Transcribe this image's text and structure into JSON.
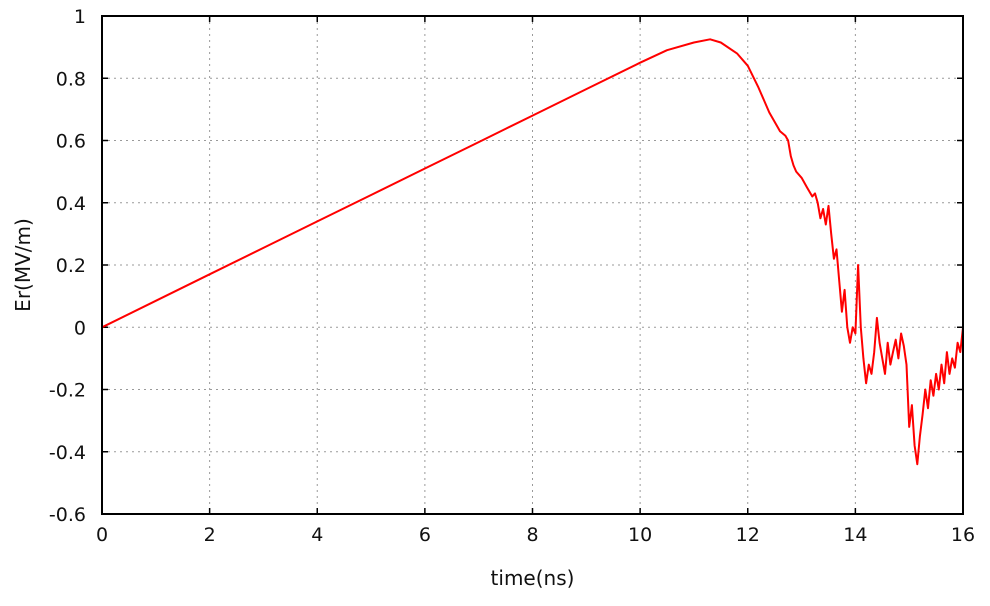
{
  "chart_data": {
    "type": "line",
    "title": "",
    "xlabel": "time(ns)",
    "ylabel": "Er(MV/m)",
    "xlim": [
      0,
      16
    ],
    "ylim": [
      -0.6,
      1
    ],
    "xticks": [
      0,
      2,
      4,
      6,
      8,
      10,
      12,
      14,
      16
    ],
    "yticks": [
      -0.6,
      -0.4,
      -0.2,
      0,
      0.2,
      0.4,
      0.6,
      0.8,
      1
    ],
    "xtick_labels": [
      "0",
      "2",
      "4",
      "6",
      "8",
      "10",
      "12",
      "14",
      "16"
    ],
    "ytick_labels": [
      "-0.6",
      "-0.4",
      "-0.2",
      "0",
      "0.2",
      "0.4",
      "0.6",
      "0.8",
      "1"
    ],
    "grid": true,
    "legend": "none",
    "series": [
      {
        "color": "#ff0000",
        "x": [
          0,
          1,
          2,
          3,
          4,
          5,
          6,
          7,
          8,
          9,
          10,
          10.5,
          11,
          11.3,
          11.5,
          11.8,
          12,
          12.2,
          12.4,
          12.6,
          12.7,
          12.75,
          12.8,
          12.85,
          12.9,
          13.0,
          13.1,
          13.2,
          13.25,
          13.3,
          13.35,
          13.4,
          13.45,
          13.5,
          13.55,
          13.6,
          13.65,
          13.7,
          13.75,
          13.8,
          13.85,
          13.9,
          13.95,
          14.0,
          14.05,
          14.1,
          14.15,
          14.2,
          14.25,
          14.3,
          14.35,
          14.4,
          14.45,
          14.5,
          14.55,
          14.6,
          14.65,
          14.7,
          14.75,
          14.8,
          14.85,
          14.9,
          14.95,
          15.0,
          15.05,
          15.1,
          15.15,
          15.2,
          15.25,
          15.3,
          15.35,
          15.4,
          15.45,
          15.5,
          15.55,
          15.6,
          15.65,
          15.7,
          15.75,
          15.8,
          15.85,
          15.9,
          15.95,
          16.0
        ],
        "y": [
          0,
          0.085,
          0.17,
          0.255,
          0.34,
          0.425,
          0.51,
          0.595,
          0.68,
          0.765,
          0.85,
          0.89,
          0.915,
          0.925,
          0.915,
          0.88,
          0.84,
          0.77,
          0.69,
          0.63,
          0.615,
          0.6,
          0.55,
          0.52,
          0.5,
          0.48,
          0.45,
          0.42,
          0.43,
          0.4,
          0.35,
          0.38,
          0.33,
          0.39,
          0.3,
          0.22,
          0.25,
          0.15,
          0.05,
          0.12,
          0.0,
          -0.05,
          0.0,
          -0.02,
          0.2,
          0.0,
          -0.1,
          -0.18,
          -0.12,
          -0.15,
          -0.08,
          0.03,
          -0.05,
          -0.1,
          -0.15,
          -0.05,
          -0.12,
          -0.08,
          -0.04,
          -0.1,
          -0.02,
          -0.06,
          -0.12,
          -0.32,
          -0.25,
          -0.38,
          -0.44,
          -0.35,
          -0.28,
          -0.2,
          -0.26,
          -0.17,
          -0.22,
          -0.15,
          -0.2,
          -0.12,
          -0.18,
          -0.08,
          -0.15,
          -0.1,
          -0.13,
          -0.05,
          -0.08,
          0.0
        ]
      }
    ]
  }
}
